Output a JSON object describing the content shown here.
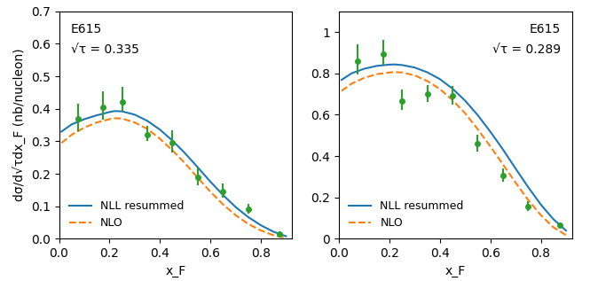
{
  "chart_data": [
    {
      "type": "line",
      "x_label": "x_F",
      "y_label": "dσ/d√τdx_F (nb/nucleon)",
      "annotations": [
        "E615",
        "√τ = 0.335"
      ],
      "xlim": [
        0.0,
        0.925
      ],
      "xticks": [
        0.0,
        0.2,
        0.4,
        0.6,
        0.8
      ],
      "ylim": [
        0.0,
        0.7
      ],
      "yticks": [
        0.0,
        0.1,
        0.2,
        0.3,
        0.4,
        0.5,
        0.6,
        0.7
      ],
      "legend": "lower left",
      "series": [
        {
          "name": "NLL resummed",
          "type": "line",
          "line_style": "solid",
          "x": [
            0.01,
            0.05,
            0.1,
            0.15,
            0.2,
            0.22,
            0.25,
            0.3,
            0.35,
            0.4,
            0.45,
            0.5,
            0.55,
            0.6,
            0.65,
            0.7,
            0.75,
            0.8,
            0.85,
            0.9
          ],
          "values": [
            0.33,
            0.352,
            0.368,
            0.38,
            0.39,
            0.393,
            0.392,
            0.382,
            0.363,
            0.336,
            0.302,
            0.263,
            0.22,
            0.176,
            0.135,
            0.098,
            0.067,
            0.042,
            0.022,
            0.008
          ]
        },
        {
          "name": "NLO",
          "type": "line",
          "line_style": "dashed",
          "x": [
            0.01,
            0.05,
            0.1,
            0.15,
            0.2,
            0.22,
            0.25,
            0.3,
            0.35,
            0.4,
            0.45,
            0.5,
            0.55,
            0.6,
            0.65,
            0.7,
            0.75,
            0.8,
            0.85,
            0.9
          ],
          "values": [
            0.295,
            0.32,
            0.342,
            0.358,
            0.368,
            0.371,
            0.37,
            0.358,
            0.338,
            0.308,
            0.272,
            0.232,
            0.188,
            0.145,
            0.106,
            0.073,
            0.046,
            0.026,
            0.011,
            0.003
          ]
        },
        {
          "type": "scatter",
          "marker": "circle",
          "x": [
            0.075,
            0.175,
            0.25,
            0.35,
            0.45,
            0.55,
            0.65,
            0.75,
            0.875
          ],
          "values": [
            0.37,
            0.405,
            0.42,
            0.32,
            0.295,
            0.19,
            0.145,
            0.09,
            0.015
          ],
          "error_low": [
            0.04,
            0.038,
            0.03,
            0.02,
            0.03,
            0.025,
            0.018,
            0.012,
            0.006
          ],
          "error_high": [
            0.045,
            0.048,
            0.048,
            0.028,
            0.038,
            0.03,
            0.025,
            0.018,
            0.008
          ]
        }
      ]
    },
    {
      "type": "line",
      "x_label": "x_F",
      "annotations": [
        "E615",
        "√τ = 0.289"
      ],
      "xlim": [
        0.0,
        0.925
      ],
      "xticks": [
        0.0,
        0.2,
        0.4,
        0.6,
        0.8
      ],
      "ylim": [
        0.0,
        1.1
      ],
      "yticks": [
        0,
        0.2,
        0.4,
        0.6,
        0.8,
        1
      ],
      "legend": "lower left",
      "series": [
        {
          "name": "NLL resummed",
          "type": "line",
          "line_style": "solid",
          "x": [
            0.01,
            0.05,
            0.1,
            0.15,
            0.2,
            0.22,
            0.25,
            0.3,
            0.35,
            0.4,
            0.45,
            0.5,
            0.55,
            0.6,
            0.65,
            0.7,
            0.75,
            0.8,
            0.85,
            0.9
          ],
          "values": [
            0.768,
            0.8,
            0.822,
            0.836,
            0.842,
            0.843,
            0.84,
            0.828,
            0.805,
            0.772,
            0.726,
            0.668,
            0.598,
            0.518,
            0.432,
            0.34,
            0.25,
            0.166,
            0.095,
            0.04
          ]
        },
        {
          "name": "NLO",
          "type": "line",
          "line_style": "dashed",
          "x": [
            0.01,
            0.05,
            0.1,
            0.15,
            0.2,
            0.22,
            0.25,
            0.3,
            0.35,
            0.4,
            0.45,
            0.5,
            0.55,
            0.6,
            0.65,
            0.7,
            0.75,
            0.8,
            0.85,
            0.9
          ],
          "values": [
            0.715,
            0.75,
            0.778,
            0.796,
            0.804,
            0.806,
            0.804,
            0.79,
            0.763,
            0.724,
            0.671,
            0.607,
            0.53,
            0.447,
            0.36,
            0.272,
            0.188,
            0.115,
            0.056,
            0.018
          ]
        },
        {
          "type": "scatter",
          "marker": "circle",
          "x": [
            0.075,
            0.175,
            0.25,
            0.35,
            0.45,
            0.55,
            0.65,
            0.75,
            0.875
          ],
          "values": [
            0.86,
            0.895,
            0.665,
            0.7,
            0.69,
            0.46,
            0.305,
            0.155,
            0.065
          ],
          "error_low": [
            0.065,
            0.055,
            0.042,
            0.038,
            0.042,
            0.04,
            0.028,
            0.02,
            0.012
          ],
          "error_high": [
            0.082,
            0.065,
            0.055,
            0.042,
            0.048,
            0.045,
            0.035,
            0.025,
            0.016
          ]
        }
      ]
    }
  ]
}
